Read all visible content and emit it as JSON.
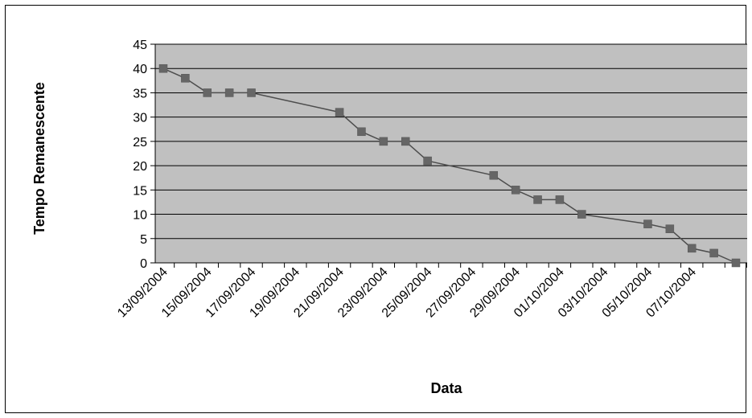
{
  "chart_data": {
    "type": "line",
    "title": "",
    "xlabel": "Data",
    "ylabel": "Tempo Remanescente",
    "ylim": [
      0,
      45
    ],
    "yticks": [
      0,
      5,
      10,
      15,
      20,
      25,
      30,
      35,
      40,
      45
    ],
    "xlim": [
      "2004-09-13",
      "2004-10-09"
    ],
    "x_tick_labels": [
      "13/09/2004",
      "15/09/2004",
      "17/09/2004",
      "19/09/2004",
      "21/09/2004",
      "23/09/2004",
      "25/09/2004",
      "27/09/2004",
      "29/09/2004",
      "01/10/2004",
      "03/10/2004",
      "05/10/2004",
      "07/10/2004"
    ],
    "x_tick_dates": [
      "2004-09-13",
      "2004-09-15",
      "2004-09-17",
      "2004-09-19",
      "2004-09-21",
      "2004-09-23",
      "2004-09-25",
      "2004-09-27",
      "2004-09-29",
      "2004-10-01",
      "2004-10-03",
      "2004-10-05",
      "2004-10-07"
    ],
    "grid": true,
    "legend": "none",
    "colors": {
      "plot_background": "#c0c0c0",
      "line": "#4d4d4d",
      "marker": "#666666",
      "gridline": "#000000"
    },
    "series": [
      {
        "marker": "square",
        "x": [
          "2004-09-13",
          "2004-09-14",
          "2004-09-15",
          "2004-09-16",
          "2004-09-17",
          "2004-09-21",
          "2004-09-22",
          "2004-09-23",
          "2004-09-24",
          "2004-09-25",
          "2004-09-28",
          "2004-09-29",
          "2004-09-30",
          "2004-10-01",
          "2004-10-02",
          "2004-10-05",
          "2004-10-06",
          "2004-10-07",
          "2004-10-08",
          "2004-10-09"
        ],
        "values": [
          40,
          38,
          35,
          35,
          35,
          31,
          27,
          25,
          25,
          21,
          18,
          15,
          13,
          13,
          10,
          8,
          7,
          3,
          2,
          0
        ]
      }
    ]
  }
}
